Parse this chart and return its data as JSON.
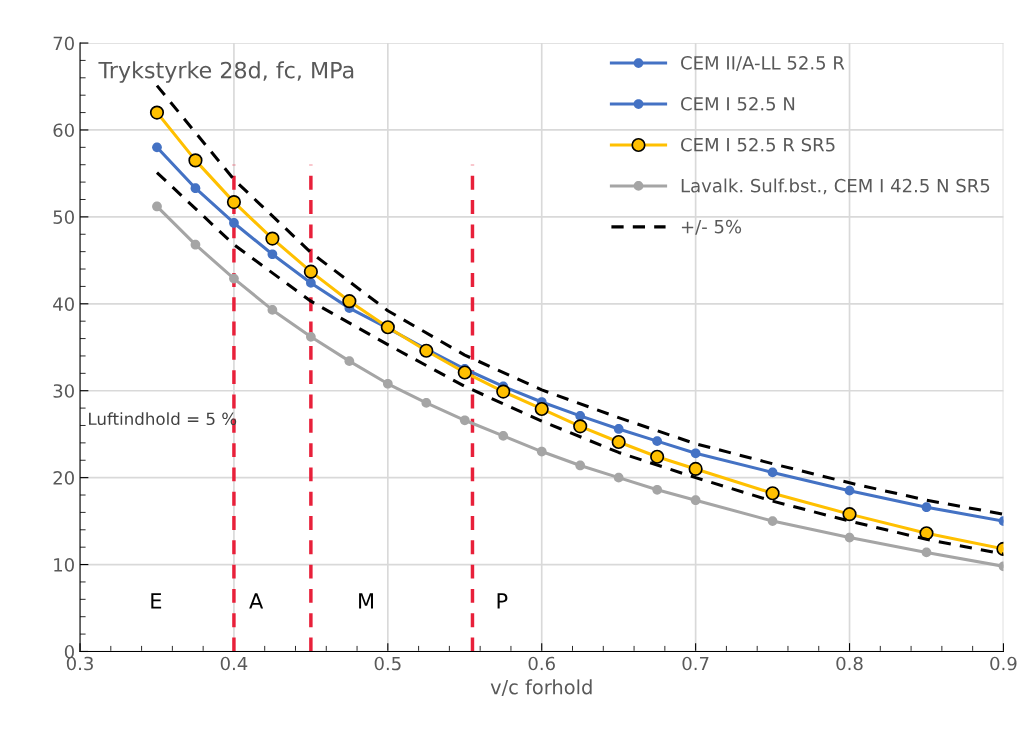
{
  "chart_data": {
    "type": "line",
    "title": "Trykstyrke 28d, fc, MPa",
    "xlabel": "v/c forhold",
    "series": [
      {
        "name": "CEM II/A-LL 52.5 R",
        "color": "#4472c4",
        "marker": "circle",
        "values": [
          58,
          53.3,
          49.3,
          45.7,
          42.4,
          39.5,
          37.2,
          34.8,
          32.5,
          30.5,
          28.7,
          27.1,
          25.6,
          24.2,
          22.8,
          20.6,
          18.5,
          16.6,
          15.0
        ]
      },
      {
        "name": "CEM I 52.5 N",
        "color": "#4472c4",
        "marker": "circle",
        "values": [
          null,
          null,
          null,
          null,
          null,
          null,
          null,
          null,
          null,
          null,
          null,
          null,
          null,
          null,
          null,
          null,
          null,
          null,
          null
        ]
      },
      {
        "name": "CEM I 52.5 R SR5",
        "color": "#ffc000",
        "marker": "circle",
        "values": [
          62,
          56.5,
          51.7,
          47.5,
          43.7,
          40.3,
          37.3,
          34.6,
          32.1,
          29.9,
          27.9,
          25.9,
          24.1,
          22.4,
          21.0,
          18.2,
          15.8,
          13.6,
          11.8
        ]
      },
      {
        "name": "Lavalk. Sulf.bst., CEM I 42.5 N SR5",
        "color": "#a5a5a5",
        "marker": "circle",
        "values": [
          51.2,
          46.8,
          42.9,
          39.3,
          36.2,
          33.4,
          30.8,
          28.6,
          26.6,
          24.8,
          23.0,
          21.4,
          20.0,
          18.6,
          17.4,
          15.0,
          13.1,
          11.4,
          9.8
        ]
      },
      {
        "name": "+/- 5%",
        "color": "#000000",
        "marker": "none",
        "line_style": "dashed",
        "x": [
          0.35,
          0.4,
          0.45,
          0.5,
          0.55,
          0.6,
          0.65,
          0.7,
          0.75,
          0.8,
          0.85,
          0.9
        ],
        "values": [
          65.1,
          54.3,
          45.9,
          39.2,
          34.1,
          30.1,
          26.9,
          23.9,
          21.6,
          19.4,
          17.4,
          15.8
        ]
      },
      {
        "color": "#000000",
        "marker": "none",
        "line_style": "dashed",
        "x": [
          0.35,
          0.4,
          0.45,
          0.5,
          0.55,
          0.6,
          0.65,
          0.7,
          0.75,
          0.8,
          0.85,
          0.9
        ],
        "values": [
          55.1,
          46.8,
          40.3,
          35.3,
          30.5,
          26.5,
          22.9,
          20.0,
          17.3,
          15.0,
          12.9,
          11.2
        ]
      }
    ],
    "xlim": [
      0.3,
      0.9
    ],
    "xticks": [
      0.3,
      0.4,
      0.5,
      0.6,
      0.7,
      0.8,
      0.9
    ],
    "ylim": [
      0,
      70
    ],
    "yticks": [
      0,
      10,
      20,
      30,
      40,
      50,
      60,
      70
    ],
    "ref_lines": [
      {
        "axis": "x",
        "value": 0.4,
        "color": "#e8203a",
        "line_style": "dashed"
      },
      {
        "axis": "x",
        "value": 0.45,
        "color": "#e8203a",
        "line_style": "dashed"
      },
      {
        "axis": "x",
        "value": 0.555,
        "color": "#e8203a",
        "line_style": "dashed"
      }
    ],
    "annotations": [
      "E",
      "A",
      "M",
      "P",
      "Luftindhold = 5 %"
    ],
    "x": [
      0.35,
      0.375,
      0.4,
      0.425,
      0.45,
      0.475,
      0.5,
      0.525,
      0.55,
      0.575,
      0.6,
      0.625,
      0.65,
      0.675,
      0.7,
      0.75,
      0.8,
      0.85,
      0.9
    ],
    "grid": true,
    "legend": "top right"
  }
}
